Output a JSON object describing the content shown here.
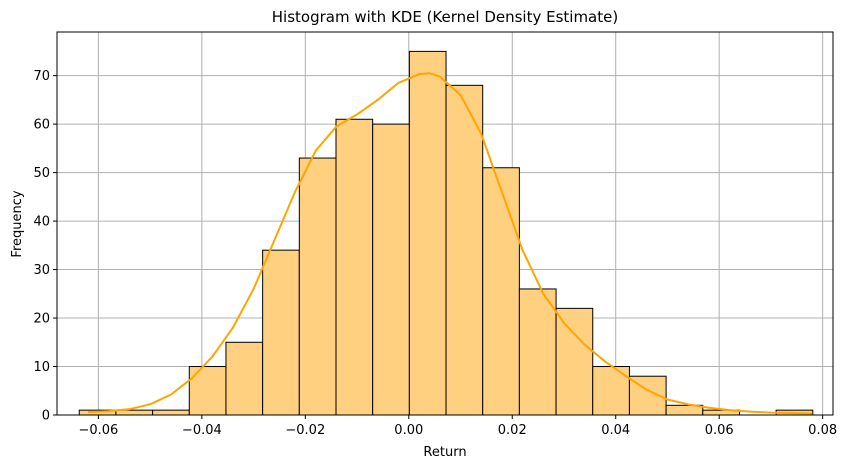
{
  "chart_data": {
    "type": "bar",
    "title": "Histogram with KDE (Kernel Density Estimate)",
    "xlabel": "Return",
    "ylabel": "Frequency",
    "xlim": [
      -0.068,
      0.082
    ],
    "ylim": [
      0,
      79
    ],
    "grid": true,
    "x_ticks": [
      -0.06,
      -0.04,
      -0.02,
      0.0,
      0.02,
      0.04,
      0.06,
      0.08
    ],
    "x_tick_labels": [
      "−0.06",
      "−0.04",
      "−0.02",
      "0.00",
      "0.02",
      "0.04",
      "0.06",
      "0.08"
    ],
    "y_ticks": [
      0,
      10,
      20,
      30,
      40,
      50,
      60,
      70
    ],
    "y_tick_labels": [
      "0",
      "10",
      "20",
      "30",
      "40",
      "50",
      "60",
      "70"
    ],
    "bin_edges": [
      -0.0637,
      -0.05661,
      -0.04952,
      -0.04243,
      -0.03534,
      -0.02825,
      -0.02116,
      -0.01407,
      -0.00698,
      0.00011,
      0.0072,
      0.01429,
      0.02138,
      0.02847,
      0.03556,
      0.04265,
      0.04974,
      0.05683,
      0.06392,
      0.07101,
      0.0781
    ],
    "values": [
      1,
      1,
      1,
      10,
      15,
      34,
      53,
      61,
      60,
      75,
      68,
      51,
      26,
      22,
      10,
      8,
      2,
      1,
      0,
      1
    ],
    "kde": {
      "x": [
        -0.062,
        -0.058,
        -0.054,
        -0.05,
        -0.046,
        -0.042,
        -0.038,
        -0.034,
        -0.03,
        -0.026,
        -0.022,
        -0.018,
        -0.014,
        -0.01,
        -0.006,
        -0.002,
        0.002,
        0.004,
        0.006,
        0.01,
        0.014,
        0.018,
        0.022,
        0.026,
        0.03,
        0.034,
        0.038,
        0.042,
        0.046,
        0.05,
        0.054,
        0.058,
        0.062,
        0.066,
        0.07,
        0.074,
        0.078
      ],
      "y": [
        0.6,
        0.8,
        1.2,
        2.2,
        4.2,
        7.5,
        12.0,
        18.0,
        26.0,
        36.0,
        46.0,
        54.5,
        59.5,
        62.0,
        65.0,
        68.5,
        70.3,
        70.5,
        69.8,
        66.0,
        58.0,
        46.0,
        34.0,
        25.0,
        19.0,
        14.5,
        11.0,
        8.0,
        5.2,
        3.2,
        2.2,
        1.5,
        1.0,
        0.7,
        0.5,
        0.4,
        0.3
      ]
    },
    "colors": {
      "bar_fill": "#ffd080",
      "bar_stroke": "#000000",
      "kde_line": "#ffa500",
      "grid": "#b0b0b0"
    }
  }
}
